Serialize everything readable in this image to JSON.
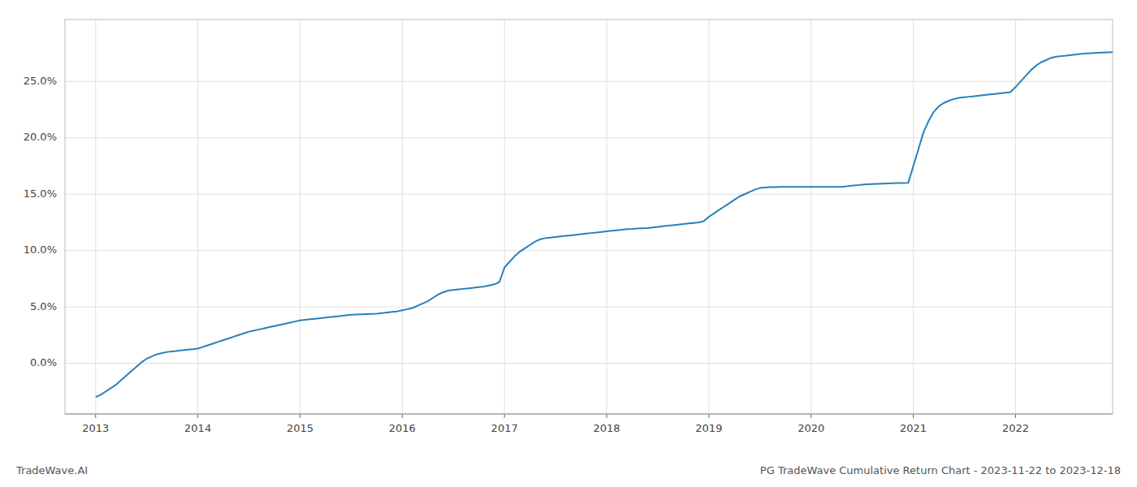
{
  "chart_data": {
    "type": "line",
    "title": "PG TradeWave Cumulative Return Chart - 2023-11-22 to 2023-12-18",
    "annotations": [
      "TradeWave.AI"
    ],
    "color": "#2980b9",
    "grid": true,
    "x": [
      2013.0,
      2013.05,
      2013.1,
      2013.15,
      2013.2,
      2013.25,
      2013.3,
      2013.35,
      2013.4,
      2013.45,
      2013.5,
      2013.55,
      2013.6,
      2013.65,
      2013.7,
      2013.75,
      2013.8,
      2013.85,
      2013.9,
      2013.95,
      2014.0,
      2014.05,
      2014.1,
      2014.15,
      2014.2,
      2014.25,
      2014.3,
      2014.35,
      2014.4,
      2014.45,
      2014.5,
      2014.55,
      2014.6,
      2014.65,
      2014.7,
      2014.75,
      2014.8,
      2014.85,
      2014.9,
      2014.95,
      2015.0,
      2015.05,
      2015.1,
      2015.15,
      2015.2,
      2015.25,
      2015.3,
      2015.35,
      2015.4,
      2015.45,
      2015.5,
      2015.55,
      2015.6,
      2015.65,
      2015.7,
      2015.75,
      2015.8,
      2015.85,
      2015.9,
      2015.95,
      2016.0,
      2016.05,
      2016.1,
      2016.15,
      2016.2,
      2016.25,
      2016.3,
      2016.35,
      2016.4,
      2016.45,
      2016.5,
      2016.55,
      2016.6,
      2016.65,
      2016.7,
      2016.75,
      2016.8,
      2016.85,
      2016.9,
      2016.95,
      2017.0,
      2017.05,
      2017.1,
      2017.15,
      2017.2,
      2017.25,
      2017.3,
      2017.35,
      2017.4,
      2017.45,
      2017.5,
      2017.55,
      2017.6,
      2017.65,
      2017.7,
      2017.75,
      2017.8,
      2017.85,
      2017.9,
      2017.95,
      2018.0,
      2018.05,
      2018.1,
      2018.15,
      2018.2,
      2018.25,
      2018.3,
      2018.35,
      2018.4,
      2018.45,
      2018.5,
      2018.55,
      2018.6,
      2018.65,
      2018.7,
      2018.75,
      2018.8,
      2018.85,
      2018.9,
      2018.95,
      2019.0,
      2019.05,
      2019.1,
      2019.15,
      2019.2,
      2019.25,
      2019.3,
      2019.35,
      2019.4,
      2019.45,
      2019.5,
      2019.55,
      2019.6,
      2019.65,
      2019.7,
      2019.75,
      2019.8,
      2019.85,
      2019.9,
      2019.95,
      2020.0,
      2020.05,
      2020.1,
      2020.15,
      2020.2,
      2020.25,
      2020.3,
      2020.35,
      2020.4,
      2020.45,
      2020.5,
      2020.55,
      2020.6,
      2020.65,
      2020.7,
      2020.75,
      2020.8,
      2020.85,
      2020.9,
      2020.95,
      2021.0,
      2021.05,
      2021.1,
      2021.15,
      2021.2,
      2021.25,
      2021.3,
      2021.35,
      2021.4,
      2021.45,
      2021.5,
      2021.55,
      2021.6,
      2021.65,
      2021.7,
      2021.75,
      2021.8,
      2021.85,
      2021.9,
      2021.95,
      2022.0,
      2022.05,
      2022.1,
      2022.15,
      2022.2,
      2022.25,
      2022.3,
      2022.35,
      2022.4,
      2022.45,
      2022.5,
      2022.55,
      2022.6,
      2022.65,
      2022.7,
      2022.75,
      2022.8,
      2022.85,
      2022.9,
      2022.95
    ],
    "values": [
      -3.0,
      -2.8,
      -2.5,
      -2.2,
      -1.9,
      -1.5,
      -1.1,
      -0.7,
      -0.3,
      0.1,
      0.4,
      0.6,
      0.8,
      0.9,
      1.0,
      1.05,
      1.1,
      1.15,
      1.2,
      1.25,
      1.3,
      1.45,
      1.6,
      1.75,
      1.9,
      2.05,
      2.2,
      2.35,
      2.5,
      2.65,
      2.8,
      2.9,
      3.0,
      3.1,
      3.2,
      3.3,
      3.4,
      3.5,
      3.6,
      3.7,
      3.8,
      3.85,
      3.9,
      3.95,
      4.0,
      4.05,
      4.1,
      4.15,
      4.2,
      4.25,
      4.3,
      4.32,
      4.34,
      4.36,
      4.38,
      4.4,
      4.45,
      4.5,
      4.55,
      4.6,
      4.7,
      4.8,
      4.9,
      5.1,
      5.3,
      5.5,
      5.8,
      6.1,
      6.3,
      6.45,
      6.5,
      6.55,
      6.6,
      6.65,
      6.7,
      6.75,
      6.8,
      6.9,
      7.0,
      7.2,
      8.5,
      9.0,
      9.5,
      9.9,
      10.2,
      10.5,
      10.8,
      11.0,
      11.1,
      11.15,
      11.2,
      11.25,
      11.3,
      11.35,
      11.4,
      11.45,
      11.5,
      11.55,
      11.6,
      11.65,
      11.7,
      11.75,
      11.8,
      11.85,
      11.9,
      11.92,
      11.95,
      11.97,
      12.0,
      12.05,
      12.1,
      12.15,
      12.2,
      12.25,
      12.3,
      12.35,
      12.4,
      12.45,
      12.5,
      12.6,
      13.0,
      13.3,
      13.6,
      13.9,
      14.2,
      14.5,
      14.8,
      15.0,
      15.2,
      15.4,
      15.55,
      15.6,
      15.62,
      15.63,
      15.64,
      15.65,
      15.65,
      15.65,
      15.65,
      15.65,
      15.65,
      15.65,
      15.65,
      15.65,
      15.65,
      15.65,
      15.65,
      15.7,
      15.75,
      15.8,
      15.85,
      15.88,
      15.9,
      15.92,
      15.93,
      15.95,
      15.97,
      15.98,
      15.99,
      16.0,
      17.5,
      19.0,
      20.5,
      21.5,
      22.3,
      22.8,
      23.1,
      23.3,
      23.45,
      23.55,
      23.6,
      23.65,
      23.7,
      23.75,
      23.8,
      23.85,
      23.9,
      23.95,
      24.0,
      24.05,
      24.5,
      25.0,
      25.5,
      26.0,
      26.4,
      26.7,
      26.9,
      27.1,
      27.2,
      27.25,
      27.3,
      27.35,
      27.4,
      27.45,
      27.5,
      27.52,
      27.54,
      27.56,
      27.58,
      27.6
    ],
    "xlim": [
      2012.7,
      2022.95
    ],
    "ylim": [
      -4.5,
      30.5
    ],
    "xticks": [
      2013,
      2014,
      2015,
      2016,
      2017,
      2018,
      2019,
      2020,
      2021,
      2022
    ],
    "yticks": [
      {
        "value": 0.0,
        "label": "0.0%"
      },
      {
        "value": 5.0,
        "label": "5.0%"
      },
      {
        "value": 10.0,
        "label": "10.0%"
      },
      {
        "value": 15.0,
        "label": "15.0%"
      },
      {
        "value": 20.0,
        "label": "20.0%"
      },
      {
        "value": 25.0,
        "label": "25.0%"
      }
    ]
  }
}
